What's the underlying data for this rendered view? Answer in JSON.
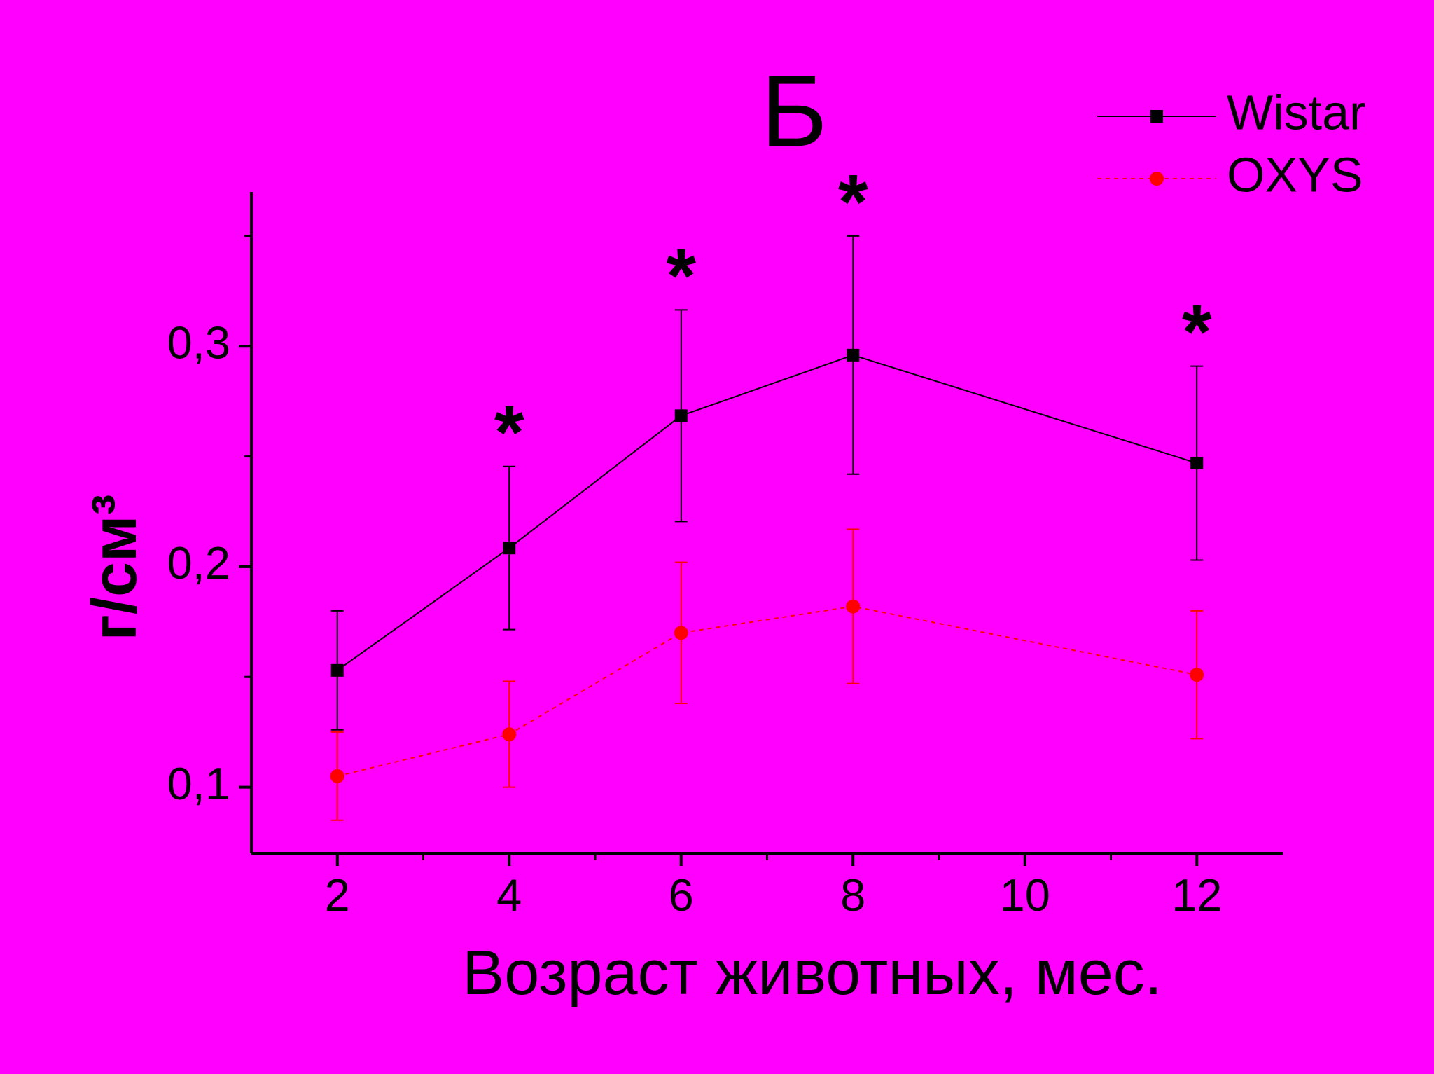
{
  "chart_data": {
    "type": "line",
    "title": "Б",
    "xlabel": "Возраст животных, мес.",
    "ylabel": "г/см³",
    "x": [
      2,
      4,
      6,
      8,
      12
    ],
    "series": [
      {
        "name": "Wistar",
        "color": "#000000",
        "marker": "square",
        "dash": "solid",
        "values": [
          0.153,
          0.2085,
          0.2685,
          0.296,
          0.247
        ],
        "errors": [
          0.027,
          0.037,
          0.048,
          0.054,
          0.044
        ]
      },
      {
        "name": "OXYS",
        "color": "#ff0000",
        "marker": "circle",
        "dash": "dotted",
        "values": [
          0.105,
          0.124,
          0.17,
          0.182,
          0.151
        ],
        "errors": [
          0.02,
          0.024,
          0.032,
          0.035,
          0.029
        ]
      }
    ],
    "annotations": [
      {
        "text": "*",
        "x": 4
      },
      {
        "text": "*",
        "x": 6
      },
      {
        "text": "*",
        "x": 8
      },
      {
        "text": "*",
        "x": 12
      }
    ],
    "xlim": [
      1,
      13
    ],
    "xticks": [
      2,
      4,
      6,
      8,
      10,
      12
    ],
    "xminorticks": [
      3,
      5,
      7,
      9,
      11
    ],
    "ylim": [
      0.07,
      0.37
    ],
    "yticks": [
      {
        "value": 0.1,
        "label": "0,1"
      },
      {
        "value": 0.2,
        "label": "0,2"
      },
      {
        "value": 0.3,
        "label": "0,3"
      }
    ],
    "yminorticks": [
      0.15,
      0.25,
      0.35
    ],
    "legend": "upper right",
    "background": "#ff00ff"
  }
}
